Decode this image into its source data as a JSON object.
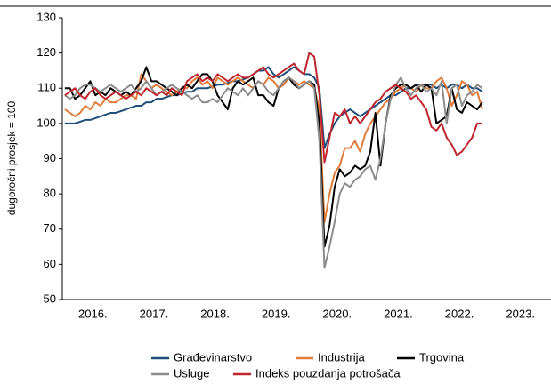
{
  "chart_data": {
    "type": "line",
    "y_label": "dugoročni prosjek = 100",
    "categories": [
      null,
      null,
      null,
      null,
      null,
      null,
      "2016.",
      null,
      null,
      null,
      null,
      null,
      null,
      null,
      null,
      null,
      null,
      null,
      "2017.",
      null,
      null,
      null,
      null,
      null,
      null,
      null,
      null,
      null,
      null,
      null,
      "2018.",
      null,
      null,
      null,
      null,
      null,
      null,
      null,
      null,
      null,
      null,
      null,
      "2019.",
      null,
      null,
      null,
      null,
      null,
      null,
      null,
      null,
      null,
      null,
      null,
      "2020.",
      null,
      null,
      null,
      null,
      null,
      null,
      null,
      null,
      null,
      null,
      null,
      "2021.",
      null,
      null,
      null,
      null,
      null,
      null,
      null,
      null,
      null,
      null,
      null,
      "2022.",
      null,
      null,
      null,
      null,
      null,
      null,
      null,
      null,
      null,
      null,
      null,
      "2023.",
      null,
      null,
      null,
      null,
      null
    ],
    "series": [
      {
        "name": "Građevinarstvo",
        "color": "#1f4e79",
        "values": [
          100,
          100,
          100,
          100.5,
          101,
          101,
          101.5,
          102,
          102.5,
          103,
          103,
          103.5,
          104,
          104.5,
          105,
          105,
          106,
          106,
          107,
          107,
          107.5,
          108,
          108,
          108.5,
          109,
          109,
          110,
          110,
          110,
          110.5,
          111,
          111,
          111.5,
          112,
          112,
          112.5,
          113,
          114,
          115,
          115,
          116,
          114,
          113,
          114,
          115,
          116,
          115,
          114,
          114,
          113,
          110,
          93,
          97,
          100,
          102,
          103,
          104,
          103,
          102,
          103,
          104,
          105,
          106,
          107,
          108,
          108,
          109,
          110,
          110,
          111,
          111,
          111,
          111,
          110,
          111,
          110,
          111,
          111,
          110,
          111,
          110,
          110,
          109,
          null,
          null,
          null,
          null,
          null,
          null,
          null,
          null,
          null,
          null,
          null,
          null,
          null
        ]
      },
      {
        "name": "Industrija",
        "color": "#e07b39",
        "values": [
          104,
          103,
          102,
          103,
          105,
          104,
          106,
          105,
          107,
          106,
          106,
          107,
          108,
          108,
          107,
          114,
          112,
          110,
          111,
          110,
          109,
          108,
          109,
          110,
          110,
          112,
          113,
          111,
          112,
          110,
          113,
          112,
          111,
          112,
          113,
          112,
          111,
          110,
          112,
          111,
          113,
          112,
          110,
          111,
          113,
          112,
          111,
          112,
          111,
          110,
          104,
          72,
          80,
          86,
          88,
          93,
          93,
          95,
          92,
          97,
          100,
          102,
          104,
          106,
          107,
          109,
          110,
          111,
          110,
          109,
          111,
          110,
          110,
          112,
          113,
          110,
          105,
          108,
          112,
          111,
          108,
          109,
          104,
          null,
          null,
          null,
          null,
          null,
          null,
          null,
          null,
          null,
          null,
          null,
          null,
          null
        ]
      },
      {
        "name": "Trgovina",
        "color": "#000000",
        "values": [
          110,
          110,
          107,
          108,
          110,
          112,
          108,
          109,
          108,
          110,
          109,
          108,
          109,
          108,
          110,
          112,
          116,
          112,
          112,
          111,
          110,
          109,
          108,
          110,
          111,
          110,
          112,
          114,
          114,
          112,
          108,
          106,
          104,
          110,
          112,
          111,
          112,
          113,
          108,
          108,
          106,
          105,
          110,
          112,
          113,
          111,
          110,
          111,
          112,
          111,
          100,
          65,
          71,
          82,
          87,
          85,
          86,
          88,
          87,
          88,
          92,
          103,
          88,
          100,
          108,
          110,
          111,
          111,
          110,
          111,
          109,
          111,
          110,
          100,
          101,
          102,
          110,
          104,
          103,
          106,
          105,
          104,
          106,
          null,
          null,
          null,
          null,
          null,
          null,
          null,
          null,
          null,
          null,
          null,
          null,
          null
        ]
      },
      {
        "name": "Usluge",
        "color": "#8c8c8c",
        "values": [
          108,
          107,
          108,
          110,
          111,
          111,
          110,
          109,
          110,
          111,
          110,
          109,
          110,
          111,
          109,
          110,
          112,
          110,
          108,
          109,
          110,
          111,
          110,
          109,
          108,
          107,
          108,
          106,
          106,
          107,
          106,
          108,
          110,
          109,
          108,
          110,
          108,
          110,
          112,
          111,
          109,
          108,
          110,
          112,
          113,
          112,
          110,
          111,
          112,
          110,
          95,
          59,
          65,
          72,
          80,
          83,
          82,
          84,
          85,
          87,
          88,
          84,
          90,
          100,
          107,
          111,
          113,
          110,
          108,
          110,
          111,
          109,
          110,
          108,
          112,
          100,
          110,
          111,
          105,
          108,
          109,
          111,
          110,
          null,
          null,
          null,
          null,
          null,
          null,
          null,
          null,
          null,
          null,
          null,
          null,
          null
        ]
      },
      {
        "name": "Indeks pouzdanja potrošača",
        "color": "#c0262d",
        "values": [
          108,
          109,
          110,
          108,
          107,
          109,
          110,
          108,
          107,
          108,
          109,
          108,
          107,
          108,
          109,
          108,
          110,
          109,
          108,
          109,
          108,
          110,
          109,
          108,
          112,
          113,
          114,
          112,
          113,
          112,
          114,
          113,
          112,
          113,
          114,
          113,
          113,
          114,
          115,
          116,
          114,
          113,
          114,
          115,
          116,
          117,
          115,
          114,
          120,
          119,
          108,
          89,
          96,
          103,
          102,
          104,
          100,
          102,
          100,
          102,
          104,
          106,
          107,
          109,
          110,
          111,
          110,
          109,
          107,
          108,
          106,
          104,
          99,
          98,
          100,
          96,
          94,
          91,
          92,
          94,
          96,
          100,
          100,
          null,
          null,
          null,
          null,
          null,
          null,
          null,
          null,
          null,
          null,
          null,
          null,
          null
        ]
      }
    ],
    "ylim": [
      50,
      130
    ],
    "yticks": [
      50,
      60,
      70,
      80,
      90,
      100,
      110,
      120,
      130
    ]
  }
}
